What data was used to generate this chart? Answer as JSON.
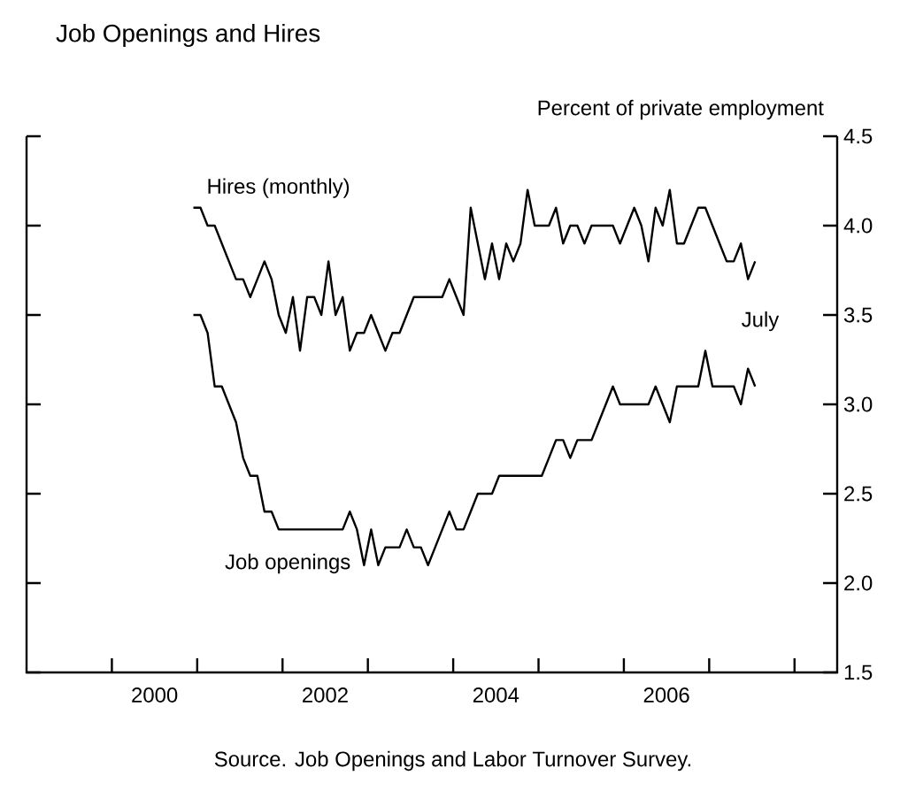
{
  "chart_data": {
    "type": "line",
    "title": "Job Openings and Hires",
    "ylabel": "Percent of private employment",
    "x": [
      "2000-12-15",
      "2001-01-15",
      "2001-02-15",
      "2001-03-15",
      "2001-04-15",
      "2001-05-15",
      "2001-06-15",
      "2001-07-15",
      "2001-08-15",
      "2001-09-15",
      "2001-10-15",
      "2001-11-15",
      "2001-12-15",
      "2002-01-15",
      "2002-02-15",
      "2002-03-15",
      "2002-04-15",
      "2002-05-15",
      "2002-06-15",
      "2002-07-15",
      "2002-08-15",
      "2002-09-15",
      "2002-10-15",
      "2002-11-15",
      "2002-12-15",
      "2003-01-15",
      "2003-02-15",
      "2003-03-15",
      "2003-04-15",
      "2003-05-15",
      "2003-06-15",
      "2003-07-15",
      "2003-08-15",
      "2003-09-15",
      "2003-10-15",
      "2003-11-15",
      "2003-12-15",
      "2004-01-15",
      "2004-02-15",
      "2004-03-15",
      "2004-04-15",
      "2004-05-15",
      "2004-06-15",
      "2004-07-15",
      "2004-08-15",
      "2004-09-15",
      "2004-10-15",
      "2004-11-15",
      "2004-12-15",
      "2005-01-15",
      "2005-02-15",
      "2005-03-15",
      "2005-04-15",
      "2005-05-15",
      "2005-06-15",
      "2005-07-15",
      "2005-08-15",
      "2005-09-15",
      "2005-10-15",
      "2005-11-15",
      "2005-12-15",
      "2006-01-15",
      "2006-02-15",
      "2006-03-15",
      "2006-04-15",
      "2006-05-15",
      "2006-06-15",
      "2006-07-15",
      "2006-08-15",
      "2006-09-15",
      "2006-10-15",
      "2006-11-15",
      "2006-12-15",
      "2007-01-15",
      "2007-02-15",
      "2007-03-15",
      "2007-04-15",
      "2007-05-15",
      "2007-06-15",
      "2007-07-15"
    ],
    "series": [
      {
        "name": "Hires (monthly)",
        "color": "#000000",
        "values": [
          4.1,
          4.1,
          4.0,
          4.0,
          3.9,
          3.8,
          3.7,
          3.7,
          3.6,
          3.7,
          3.8,
          3.7,
          3.5,
          3.4,
          3.6,
          3.3,
          3.6,
          3.6,
          3.5,
          3.8,
          3.5,
          3.6,
          3.3,
          3.4,
          3.4,
          3.5,
          3.4,
          3.3,
          3.4,
          3.4,
          3.5,
          3.6,
          3.6,
          3.6,
          3.6,
          3.6,
          3.7,
          3.6,
          3.5,
          4.1,
          3.9,
          3.7,
          3.9,
          3.7,
          3.9,
          3.8,
          3.9,
          4.2,
          4.0,
          4.0,
          4.0,
          4.1,
          3.9,
          4.0,
          4.0,
          3.9,
          4.0,
          4.0,
          4.0,
          4.0,
          3.9,
          4.0,
          4.1,
          4.0,
          3.8,
          4.1,
          4.0,
          4.2,
          3.9,
          3.9,
          4.0,
          4.1,
          4.1,
          4.0,
          3.9,
          3.8,
          3.8,
          3.9,
          3.7,
          3.8
        ]
      },
      {
        "name": "Job openings",
        "color": "#000000",
        "values": [
          3.5,
          3.5,
          3.4,
          3.1,
          3.1,
          3.0,
          2.9,
          2.7,
          2.6,
          2.6,
          2.4,
          2.4,
          2.3,
          2.3,
          2.3,
          2.3,
          2.3,
          2.3,
          2.3,
          2.3,
          2.3,
          2.3,
          2.4,
          2.3,
          2.1,
          2.3,
          2.1,
          2.2,
          2.2,
          2.2,
          2.3,
          2.2,
          2.2,
          2.1,
          2.2,
          2.3,
          2.4,
          2.3,
          2.3,
          2.4,
          2.5,
          2.5,
          2.5,
          2.6,
          2.6,
          2.6,
          2.6,
          2.6,
          2.6,
          2.6,
          2.7,
          2.8,
          2.8,
          2.7,
          2.8,
          2.8,
          2.8,
          2.9,
          3.0,
          3.1,
          3.0,
          3.0,
          3.0,
          3.0,
          3.0,
          3.1,
          3.0,
          2.9,
          3.1,
          3.1,
          3.1,
          3.1,
          3.3,
          3.1,
          3.1,
          3.1,
          3.1,
          3.0,
          3.2,
          3.1
        ]
      }
    ],
    "xlim": [
      "1999-01-01",
      "2008-07-01"
    ],
    "xticks": [
      {
        "value": "2000-01-01",
        "label": null
      },
      {
        "value": "2001-01-01",
        "label": null
      },
      {
        "value": "2002-01-01",
        "label": null
      },
      {
        "value": "2003-01-01",
        "label": null
      },
      {
        "value": "2004-01-01",
        "label": null
      },
      {
        "value": "2005-01-01",
        "label": null
      },
      {
        "value": "2006-01-01",
        "label": null
      },
      {
        "value": "2007-01-01",
        "label": null
      },
      {
        "value": "2008-01-01",
        "label": null
      },
      {
        "value": "2000-07-01",
        "label": "2000"
      },
      {
        "value": "2002-07-01",
        "label": "2002"
      },
      {
        "value": "2004-07-01",
        "label": "2004"
      },
      {
        "value": "2006-07-01",
        "label": "2006"
      }
    ],
    "ylim": [
      1.5,
      4.5
    ],
    "yticks": [
      1.5,
      {
        "value": 2,
        "label": "2.0"
      },
      2.5,
      {
        "value": 3,
        "label": "3.0"
      },
      3.5,
      {
        "value": 4,
        "label": "4.0"
      },
      4.5
    ],
    "annotations": [
      "July",
      "Source. Job Openings and Labor Turnover Survey."
    ]
  }
}
